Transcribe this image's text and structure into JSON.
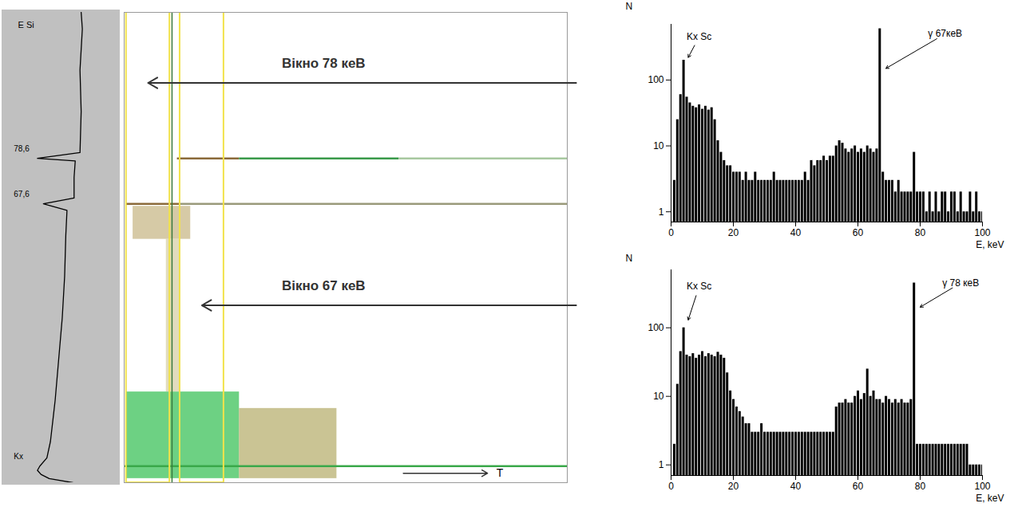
{
  "chart_data": [
    {
      "type": "line",
      "orientation": "horizontal",
      "ylabel": "E Si",
      "y": [
        0,
        1,
        2,
        3,
        4,
        6,
        10,
        15,
        20,
        30,
        40,
        50,
        60,
        66,
        67.6,
        69,
        74,
        78,
        78.6,
        80,
        90,
        100,
        110,
        114
      ],
      "values": [
        60,
        40,
        33,
        30,
        32,
        38,
        41,
        43,
        45,
        48,
        51,
        53,
        54,
        55,
        35,
        61,
        61,
        62,
        30,
        66,
        67,
        66,
        68,
        67
      ],
      "xlim": [
        0,
        100
      ],
      "ylim": [
        0,
        114
      ],
      "tick_labels": false,
      "color": "#000000",
      "annotations": [
        {
          "text": "78,6",
          "y": 78.6
        },
        {
          "text": "67,6",
          "y": 67.6
        },
        {
          "text": "Kx",
          "y": 4
        }
      ]
    },
    {
      "type": "scatter",
      "xlabel": "T",
      "tick_labels": false,
      "xlim": [
        0,
        100
      ],
      "ylim": [
        0,
        114
      ],
      "regions": [
        {
          "t": [
            0.5,
            26
          ],
          "E": [
            1,
            22
          ],
          "color": "#3cc25a"
        },
        {
          "t": [
            26,
            48
          ],
          "E": [
            1,
            18
          ],
          "color": "#b8b070"
        },
        {
          "t": [
            2,
            15
          ],
          "E": [
            59,
            67
          ],
          "color": "#c8b888"
        },
        {
          "t": [
            9.5,
            12.5
          ],
          "E": [
            22,
            59
          ],
          "color": "#d8d0a8"
        }
      ],
      "lines": [
        {
          "E": 78.6,
          "t": [
            12,
            26
          ],
          "color": "#8b6a3a"
        },
        {
          "E": 78.6,
          "t": [
            26,
            62
          ],
          "color": "#3a9a4a"
        },
        {
          "E": 78.6,
          "t": [
            62,
            100
          ],
          "color": "#a8c8a0"
        },
        {
          "E": 67.6,
          "t": [
            0.5,
            12.5
          ],
          "color": "#8b6a3a"
        },
        {
          "E": 67.6,
          "t": [
            12.5,
            100
          ],
          "color": "#9a9a7a"
        },
        {
          "E": 4,
          "t": [
            0,
            100
          ],
          "color": "#3aa84a"
        }
      ],
      "vertical_lines": [
        {
          "t": 10.8,
          "color": "#3a7a3a"
        }
      ],
      "windows": [
        {
          "label": "Вікно 78 кеВ",
          "t": [
            0.5,
            10.3
          ],
          "color": "#f2e24a"
        },
        {
          "label": "Вікно 67 кеВ",
          "t": [
            12.6,
            22.5
          ],
          "color": "#f2e24a"
        }
      ]
    },
    {
      "type": "bar",
      "log": "y",
      "xlabel": "E, keV",
      "ylabel": "N",
      "x": [
        1,
        2,
        3,
        4,
        5,
        6,
        7,
        8,
        9,
        10,
        11,
        12,
        13,
        14,
        15,
        16,
        17,
        18,
        19,
        20,
        21,
        22,
        23,
        24,
        25,
        26,
        27,
        28,
        29,
        30,
        31,
        32,
        33,
        34,
        35,
        36,
        37,
        38,
        39,
        40,
        41,
        42,
        43,
        44,
        45,
        46,
        47,
        48,
        49,
        50,
        51,
        52,
        53,
        54,
        55,
        56,
        57,
        58,
        59,
        60,
        61,
        62,
        63,
        64,
        65,
        66,
        67,
        68,
        69,
        70,
        71,
        72,
        73,
        74,
        75,
        76,
        77,
        78,
        79,
        80,
        81,
        82,
        83,
        84,
        85,
        86,
        87,
        88,
        89,
        90,
        91,
        92,
        93,
        94,
        95,
        96,
        97,
        98,
        99,
        100
      ],
      "values": [
        3,
        25,
        60,
        200,
        55,
        45,
        40,
        38,
        42,
        36,
        40,
        35,
        38,
        25,
        12,
        8,
        6,
        5,
        5,
        4,
        4,
        4,
        3,
        4,
        3,
        3,
        4,
        3,
        3,
        3,
        3,
        3,
        4,
        3,
        3,
        3,
        3,
        3,
        3,
        3,
        3,
        3,
        4,
        3,
        6,
        5,
        6,
        6,
        7,
        6,
        7,
        7,
        10,
        12,
        11,
        9,
        8,
        9,
        10,
        8,
        9,
        8,
        10,
        9,
        8,
        9,
        600,
        4,
        3,
        3,
        3,
        2,
        3,
        2,
        2,
        2,
        2,
        8,
        2,
        2,
        2,
        1,
        2,
        1,
        2,
        1,
        2,
        2,
        1,
        2,
        2,
        1,
        2,
        1,
        1,
        2,
        1,
        2,
        1,
        1
      ],
      "xlim": [
        0,
        100
      ],
      "xticks": [
        0,
        20,
        40,
        60,
        80,
        100
      ],
      "ylim": [
        0.7,
        700
      ],
      "yticks": [
        1,
        10,
        100
      ],
      "color": "#000000",
      "annotations": [
        {
          "text": "Kx Sc",
          "x": 9,
          "y": 450,
          "arrow_to": [
            5.5,
            220
          ]
        },
        {
          "text": "γ 67кеВ",
          "x": 88,
          "y": 500,
          "arrow_to": [
            69,
            150
          ]
        }
      ]
    },
    {
      "type": "bar",
      "log": "y",
      "xlabel": "E, keV",
      "ylabel": "N",
      "x": [
        1,
        2,
        3,
        4,
        5,
        6,
        7,
        8,
        9,
        10,
        11,
        12,
        13,
        14,
        15,
        16,
        17,
        18,
        19,
        20,
        21,
        22,
        23,
        24,
        25,
        26,
        27,
        28,
        29,
        30,
        31,
        32,
        33,
        34,
        35,
        36,
        37,
        38,
        39,
        40,
        41,
        42,
        43,
        44,
        45,
        46,
        47,
        48,
        49,
        50,
        51,
        52,
        53,
        54,
        55,
        56,
        57,
        58,
        59,
        60,
        61,
        62,
        63,
        64,
        65,
        66,
        67,
        68,
        69,
        70,
        71,
        72,
        73,
        74,
        75,
        76,
        77,
        78,
        79,
        80,
        81,
        82,
        83,
        84,
        85,
        86,
        87,
        88,
        89,
        90,
        91,
        92,
        93,
        94,
        95,
        96,
        97,
        98,
        99,
        100
      ],
      "values": [
        2,
        15,
        45,
        100,
        40,
        38,
        42,
        36,
        40,
        45,
        38,
        42,
        40,
        38,
        44,
        40,
        36,
        22,
        12,
        9,
        7,
        6,
        5,
        4,
        4,
        3,
        3,
        3,
        4,
        3,
        3,
        3,
        3,
        3,
        3,
        3,
        3,
        3,
        3,
        3,
        3,
        3,
        3,
        3,
        3,
        3,
        3,
        3,
        3,
        3,
        3,
        3,
        7,
        8,
        8,
        9,
        8,
        8,
        10,
        12,
        9,
        11,
        25,
        10,
        12,
        9,
        9,
        8,
        10,
        9,
        8,
        9,
        8,
        9,
        8,
        8,
        9,
        450,
        2,
        2,
        2,
        2,
        2,
        2,
        2,
        2,
        2,
        2,
        2,
        2,
        2,
        2,
        2,
        2,
        2,
        1,
        1,
        1,
        1,
        1
      ],
      "xlim": [
        0,
        100
      ],
      "xticks": [
        0,
        20,
        40,
        60,
        80,
        100
      ],
      "ylim": [
        0.7,
        700
      ],
      "yticks": [
        1,
        10,
        100
      ],
      "color": "#000000",
      "annotations": [
        {
          "text": "Kx Sc",
          "x": 9,
          "y": 400,
          "arrow_to": [
            5.5,
            130
          ]
        },
        {
          "text": "γ 78 кеВ",
          "x": 93,
          "y": 450,
          "arrow_to": [
            80,
            200
          ]
        }
      ]
    }
  ]
}
